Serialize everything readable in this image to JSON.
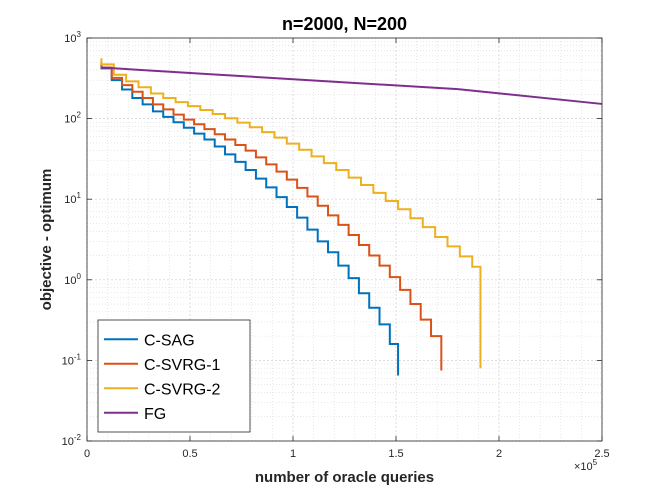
{
  "chart_data": {
    "type": "line",
    "title": "n=2000, N=200",
    "xlabel": "number of oracle queries",
    "ylabel": "objective - optimum",
    "xlim": [
      0,
      250000
    ],
    "ylim": [
      0.01,
      1000
    ],
    "yscale": "log",
    "grid": true,
    "minor_grid": true,
    "legend_position": "bottom-left",
    "x_exponent_label": "×10",
    "x_exponent_power": "5",
    "x_ticks": [
      0,
      50000,
      100000,
      150000,
      200000,
      250000
    ],
    "x_tick_labels": [
      "0",
      "0.5",
      "1",
      "1.5",
      "2",
      "2.5"
    ],
    "y_ticks": [
      0.01,
      0.1,
      1,
      10,
      100,
      1000
    ],
    "y_tick_mantissa": [
      "10",
      "10",
      "10",
      "10",
      "10",
      "10"
    ],
    "y_tick_exponents": [
      "-2",
      "-1",
      "0",
      "1",
      "2",
      "3"
    ],
    "series": [
      {
        "name": "C-SAG",
        "color": "#0072BD",
        "x": [
          7000,
          7000,
          12000,
          12000,
          17000,
          17000,
          22000,
          22000,
          27000,
          27000,
          32000,
          32000,
          37000,
          37000,
          42000,
          42000,
          47000,
          47000,
          52000,
          52000,
          57000,
          57000,
          62000,
          62000,
          67000,
          67000,
          72000,
          72000,
          77000,
          77000,
          82000,
          82000,
          87000,
          87000,
          92000,
          92000,
          97000,
          97000,
          102000,
          102000,
          107000,
          107000,
          112000,
          112000,
          117000,
          117000,
          122000,
          122000,
          127000,
          127000,
          132000,
          132000,
          137000,
          137000,
          142000,
          142000,
          147000,
          147000,
          151000,
          151000
        ],
        "y": [
          480,
          420,
          420,
          300,
          300,
          230,
          230,
          180,
          180,
          150,
          150,
          123,
          123,
          105,
          105,
          90,
          90,
          77,
          77,
          65,
          65,
          55,
          55,
          45,
          45,
          36,
          36,
          29,
          29,
          23,
          23,
          18,
          18,
          14,
          14,
          10.6,
          10.6,
          8,
          8,
          5.9,
          5.9,
          4.2,
          4.2,
          3.0,
          3.0,
          2.2,
          2.2,
          1.5,
          1.5,
          1.05,
          1.05,
          0.68,
          0.68,
          0.45,
          0.45,
          0.28,
          0.28,
          0.16,
          0.16,
          0.065
        ]
      },
      {
        "name": "C-SVRG-1",
        "color": "#D95319",
        "x": [
          7000,
          7000,
          12000,
          12000,
          17000,
          17000,
          22000,
          22000,
          27000,
          27000,
          32000,
          32000,
          37000,
          37000,
          42000,
          42000,
          47000,
          47000,
          52000,
          52000,
          57000,
          57000,
          62000,
          62000,
          67000,
          67000,
          72000,
          72000,
          77000,
          77000,
          82000,
          82000,
          87000,
          87000,
          92000,
          92000,
          97000,
          97000,
          102000,
          102000,
          107000,
          107000,
          112000,
          112000,
          117000,
          117000,
          122000,
          122000,
          127000,
          127000,
          132000,
          132000,
          137000,
          137000,
          142000,
          142000,
          147000,
          147000,
          152000,
          152000,
          157000,
          157000,
          162000,
          162000,
          167000,
          167000,
          172000,
          172000
        ],
        "y": [
          500,
          430,
          430,
          320,
          320,
          260,
          260,
          215,
          215,
          180,
          180,
          150,
          150,
          130,
          130,
          112,
          112,
          97,
          97,
          85,
          85,
          74,
          74,
          64,
          64,
          55,
          55,
          47,
          47,
          40,
          40,
          33,
          33,
          27,
          27,
          22,
          22,
          17.5,
          17.5,
          13.8,
          13.8,
          10.8,
          10.8,
          8.3,
          8.3,
          6.3,
          6.3,
          4.8,
          4.8,
          3.6,
          3.6,
          2.7,
          2.7,
          2.0,
          2.0,
          1.5,
          1.5,
          1.08,
          1.08,
          0.75,
          0.75,
          0.5,
          0.5,
          0.32,
          0.32,
          0.2,
          0.2,
          0.075
        ]
      },
      {
        "name": "C-SVRG-2",
        "color": "#EDB120",
        "x": [
          7000,
          7000,
          13000,
          13000,
          19000,
          19000,
          25000,
          25000,
          31000,
          31000,
          37000,
          37000,
          43000,
          43000,
          49000,
          49000,
          55000,
          55000,
          61000,
          61000,
          67000,
          67000,
          73000,
          73000,
          79000,
          79000,
          85000,
          85000,
          91000,
          91000,
          97000,
          97000,
          103000,
          103000,
          109000,
          109000,
          115000,
          115000,
          121000,
          121000,
          127000,
          127000,
          133000,
          133000,
          139000,
          139000,
          145000,
          145000,
          151000,
          151000,
          157000,
          157000,
          163000,
          163000,
          169000,
          169000,
          175000,
          175000,
          181000,
          181000,
          187000,
          187000,
          191000,
          191000
        ],
        "y": [
          560,
          470,
          470,
          350,
          350,
          290,
          290,
          245,
          245,
          205,
          205,
          180,
          180,
          160,
          160,
          143,
          143,
          128,
          128,
          114,
          114,
          101,
          101,
          89,
          89,
          78,
          78,
          68,
          68,
          58,
          58,
          49,
          49,
          41,
          41,
          34,
          34,
          28,
          28,
          23,
          23,
          18.5,
          18.5,
          15,
          15,
          12,
          12,
          9.5,
          9.5,
          7.5,
          7.5,
          5.8,
          5.8,
          4.5,
          4.5,
          3.4,
          3.4,
          2.6,
          2.6,
          1.95,
          1.95,
          1.45,
          1.45,
          0.08
        ]
      },
      {
        "name": "FG",
        "color": "#7E2F8E",
        "x": [
          7000,
          60000,
          120000,
          180000,
          250000
        ],
        "y": [
          430,
          355,
          287,
          232,
          152
        ]
      }
    ]
  }
}
